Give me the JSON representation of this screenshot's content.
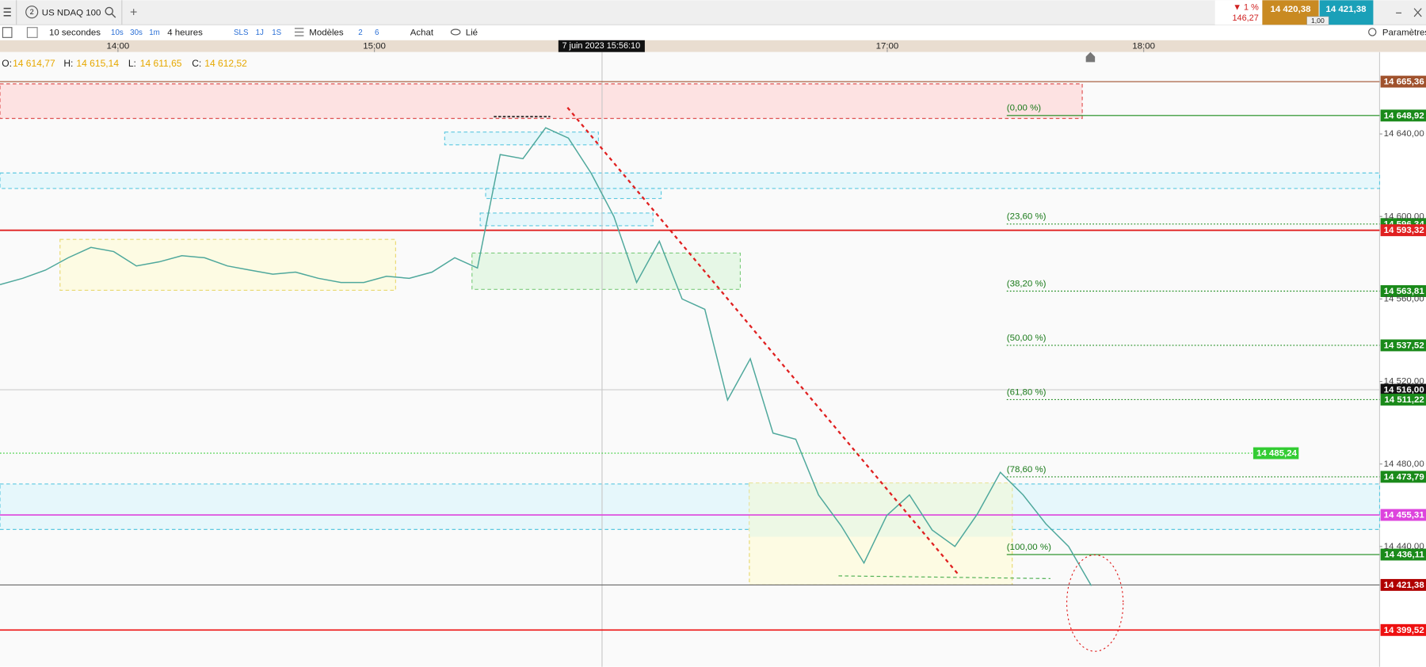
{
  "toolbar": {
    "tab_number": "2",
    "instrument": "US NDAQ 100",
    "add": "+",
    "interval": "10 secondes",
    "quick_intervals": [
      "10s",
      "30s",
      "1m"
    ],
    "period": "4 heures",
    "periods": [
      "SLS",
      "1J",
      "1S"
    ],
    "templates": "Modèles",
    "counts": [
      "2",
      "6"
    ],
    "order": "Achat",
    "link": "Lié",
    "settings": "Paramètres"
  },
  "quote": {
    "change": "▼ 1 %",
    "change_points": "146,27",
    "bid": "14 420,38",
    "ask": "14 421,38",
    "spread": "1,00"
  },
  "ohlc": {
    "o_label": "O:",
    "o": "14 614,77",
    "h_label": "H:",
    "h": "14 615,14",
    "l_label": "L:",
    "l": "14 611,65",
    "c_label": "C:",
    "c": "14 612,52"
  },
  "chart_data": {
    "type": "line",
    "crosshair_label": "7 juin 2023 15:56:10",
    "xlim": [
      13.54,
      18.92
    ],
    "xticks": [
      {
        "value": 14,
        "label": "14:00"
      },
      {
        "value": 15,
        "label": "15:00"
      },
      {
        "value": 17,
        "label": "17:00"
      },
      {
        "value": 18,
        "label": "18:00"
      }
    ],
    "ylim": [
      14381.7,
      14679.7
    ],
    "yticks": [
      {
        "value": 14640,
        "label": "14 640,00"
      },
      {
        "value": 14600,
        "label": "14 600,00"
      },
      {
        "value": 14560,
        "label": "14 560,00"
      },
      {
        "value": 14520,
        "label": "14 520,00"
      },
      {
        "value": 14480,
        "label": "14 480,00"
      },
      {
        "value": 14440,
        "label": "14 440,00"
      }
    ],
    "series": [
      {
        "color": "#4fa89c",
        "values": [
          14567,
          14570,
          14574,
          14580,
          14585,
          14583,
          14576,
          14578,
          14581,
          14580,
          14576,
          14574,
          14572,
          14573,
          14570,
          14568,
          14568,
          14571,
          14570,
          14573,
          14580,
          14575,
          14630,
          14628,
          14643,
          14638,
          14621,
          14600,
          14568,
          14588,
          14560,
          14555,
          14511,
          14531,
          14495,
          14492,
          14465,
          14450,
          14432,
          14455,
          14465,
          14448,
          14440,
          14456,
          14476,
          14465,
          14451,
          14440,
          14421
        ]
      }
    ],
    "levels": [
      {
        "value": 14665.36,
        "label": "14 665,36",
        "color": "#a0522d"
      },
      {
        "value": 14648.92,
        "label": "14 648,92",
        "color": "#1a8a1a",
        "fib": "(0,00 %)"
      },
      {
        "value": 14596.34,
        "label": "14 596,34",
        "color": "#1a8a1a",
        "fib": "(23,60 %)"
      },
      {
        "value": 14593.32,
        "label": "14 593,32",
        "color": "#e02020"
      },
      {
        "value": 14563.81,
        "label": "14 563,81",
        "color": "#1a8a1a",
        "fib": "(38,20 %)"
      },
      {
        "value": 14537.52,
        "label": "14 537,52",
        "color": "#1a8a1a",
        "fib": "(50,00 %)"
      },
      {
        "value": 14516.0,
        "label": "14 516,00",
        "color": "#111111"
      },
      {
        "value": 14511.22,
        "label": "14 511,22",
        "color": "#1a8a1a",
        "fib": "(61,80 %)"
      },
      {
        "value": 14485.24,
        "label": "14 485,24",
        "color": "#33cc33"
      },
      {
        "value": 14473.79,
        "label": "14 473,79",
        "color": "#1a8a1a",
        "fib": "(78,60 %)"
      },
      {
        "value": 14455.31,
        "label": "14 455,31",
        "color": "#dd44dd"
      },
      {
        "value": 14436.11,
        "label": "14 436,11",
        "color": "#1a8a1a",
        "fib": "(100,00 %)"
      },
      {
        "value": 14421.38,
        "label": "14 421,38",
        "color": "#b00000"
      },
      {
        "value": 14399.52,
        "label": "14 399,52",
        "color": "#ee1111"
      }
    ]
  }
}
